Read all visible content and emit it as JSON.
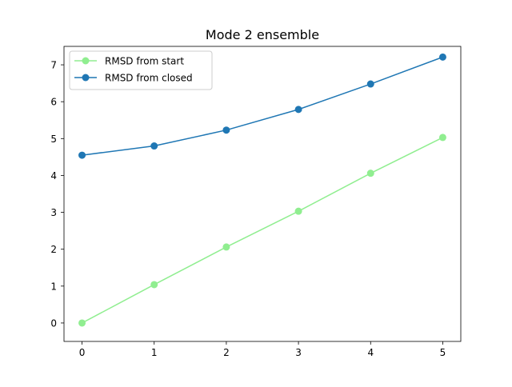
{
  "chart_data": {
    "type": "line",
    "title": "Mode 2 ensemble",
    "xlabel": "",
    "ylabel": "",
    "x": [
      0,
      1,
      2,
      3,
      4,
      5
    ],
    "xlim": [
      -0.25,
      5.25
    ],
    "ylim": [
      -0.5,
      7.5
    ],
    "xticks": [
      0,
      1,
      2,
      3,
      4,
      5
    ],
    "yticks": [
      0,
      1,
      2,
      3,
      4,
      5,
      6,
      7
    ],
    "grid": false,
    "legend_position": "upper-left",
    "series": [
      {
        "name": "RMSD from start",
        "color": "#90ee90",
        "marker": "circle",
        "values": [
          0.0,
          1.04,
          2.06,
          3.03,
          4.06,
          5.03
        ]
      },
      {
        "name": "RMSD from closed",
        "color": "#1f77b4",
        "marker": "circle",
        "values": [
          4.55,
          4.8,
          5.23,
          5.79,
          6.48,
          7.21
        ]
      }
    ]
  }
}
